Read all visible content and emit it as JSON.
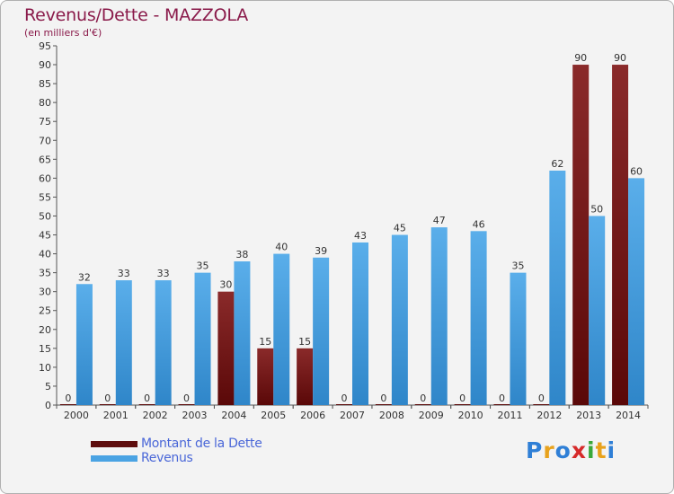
{
  "chart_data": {
    "type": "bar",
    "title": "Revenus/Dette - MAZZOLA",
    "subtitle": "(en milliers d'€)",
    "categories": [
      "2000",
      "2001",
      "2002",
      "2003",
      "2004",
      "2005",
      "2006",
      "2007",
      "2008",
      "2009",
      "2010",
      "2011",
      "2012",
      "2013",
      "2014"
    ],
    "series": [
      {
        "name": "Montant de la Dette",
        "color": "#7a1515",
        "values": [
          0,
          0,
          0,
          0,
          30,
          15,
          15,
          0,
          0,
          0,
          0,
          0,
          0,
          90,
          90
        ]
      },
      {
        "name": "Revenus",
        "color": "#4aa3e3",
        "values": [
          32,
          33,
          33,
          35,
          38,
          40,
          39,
          43,
          45,
          47,
          46,
          35,
          62,
          50,
          60
        ]
      }
    ],
    "ylim": [
      0,
      95
    ],
    "yticks": [
      0,
      5,
      10,
      15,
      20,
      25,
      30,
      35,
      40,
      45,
      50,
      55,
      60,
      65,
      70,
      75,
      80,
      85,
      90,
      95
    ],
    "grid": false,
    "legend": "bottom-left"
  },
  "legend": {
    "items": [
      {
        "label": "Montant de la Dette",
        "color": "#5e0d0d"
      },
      {
        "label": "Revenus",
        "color": "#4aa3e3"
      }
    ]
  },
  "logo": {
    "letters": [
      "P",
      "r",
      "o",
      "x",
      "i",
      "t",
      "i"
    ],
    "colors": [
      "#2f7fd6",
      "#e8a21c",
      "#2f7fd6",
      "#d62a2a",
      "#3aa83a",
      "#e8a21c",
      "#2f7fd6"
    ]
  }
}
